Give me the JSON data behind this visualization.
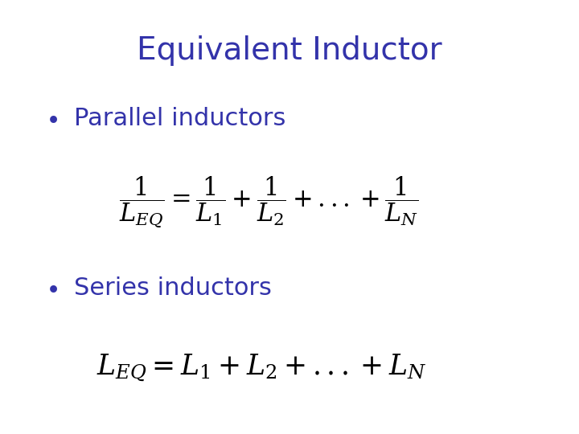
{
  "title": "Equivalent Inductor",
  "title_color": "#3333AA",
  "title_fontsize": 28,
  "bullet_color": "#3333AA",
  "bullet_fontsize": 22,
  "formula_color": "#000000",
  "formula_fontsize": 22,
  "background_color": "#FFFFFF",
  "bullet1": "Parallel inductors",
  "bullet2": "Series inductors"
}
